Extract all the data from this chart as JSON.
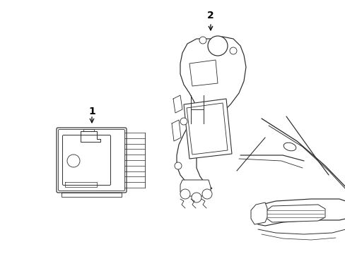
{
  "background_color": "#ffffff",
  "line_color": "#2a2a2a",
  "line_width": 0.85,
  "label1_text": "1",
  "label2_text": "2",
  "figsize": [
    4.89,
    3.6
  ],
  "dpi": 100,
  "xlim": [
    0,
    489
  ],
  "ylim": [
    0,
    360
  ]
}
